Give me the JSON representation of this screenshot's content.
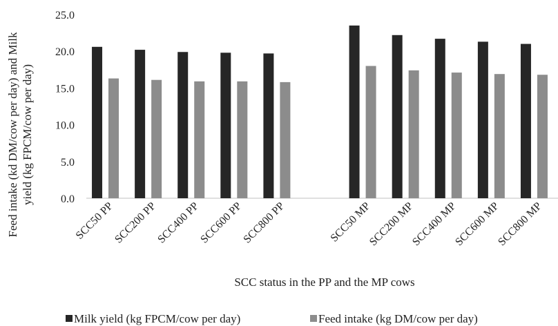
{
  "chart_data": {
    "type": "bar",
    "title": "",
    "xlabel": "SCC status in the PP and the MP cows",
    "ylabel_lines": [
      "Feed intake (kd DM/cow per day) and Milk",
      "yield (kg FPCM/cow per day)"
    ],
    "ylim": [
      0,
      25
    ],
    "yticks": [
      "0.0",
      "5.0",
      "10.0",
      "15.0",
      "20.0",
      "25.0"
    ],
    "categories": [
      "SCC50 PP",
      "SCC200 PP",
      "SCC400 PP",
      "SCC600 PP",
      "SCC800 PP",
      "",
      "SCC50 MP",
      "SCC200 MP",
      "SCC400 MP",
      "SCC600 MP",
      "SCC800 MP"
    ],
    "series": [
      {
        "name": "Milk yield (kg FPCM/cow per day)",
        "color": "#262626",
        "values": [
          20.6,
          20.2,
          19.9,
          19.8,
          19.7,
          null,
          23.5,
          22.2,
          21.7,
          21.3,
          21.0
        ]
      },
      {
        "name": "Feed intake (kg DM/cow per day)",
        "color": "#8c8c8c",
        "values": [
          16.3,
          16.1,
          15.9,
          15.9,
          15.8,
          null,
          18.0,
          17.4,
          17.1,
          16.9,
          16.8
        ]
      }
    ],
    "grid": false,
    "legend_position": "bottom"
  }
}
